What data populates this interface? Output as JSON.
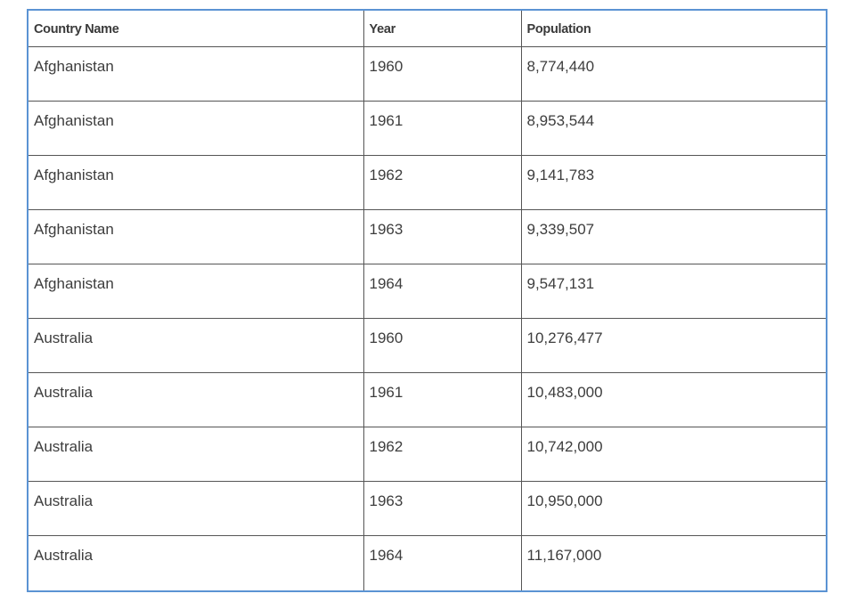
{
  "table": {
    "columns": [
      "Country Name",
      "Year",
      "Population"
    ],
    "rows": [
      [
        "Afghanistan",
        "1960",
        "8,774,440"
      ],
      [
        "Afghanistan",
        "1961",
        "8,953,544"
      ],
      [
        "Afghanistan",
        "1962",
        "9,141,783"
      ],
      [
        "Afghanistan",
        "1963",
        "9,339,507"
      ],
      [
        "Afghanistan",
        "1964",
        "9,547,131"
      ],
      [
        "Australia",
        "1960",
        "10,276,477"
      ],
      [
        "Australia",
        "1961",
        "10,483,000"
      ],
      [
        "Australia",
        "1962",
        "10,742,000"
      ],
      [
        "Australia",
        "1963",
        "10,950,000"
      ],
      [
        "Australia",
        "1964",
        "11,167,000"
      ]
    ]
  },
  "colors": {
    "frame_border": "#5b93d3",
    "cell_border": "#555555",
    "text": "#3d3d3d"
  }
}
